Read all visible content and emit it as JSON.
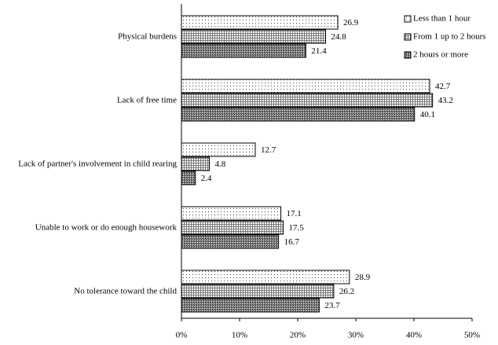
{
  "chart_data": {
    "type": "bar",
    "orientation": "horizontal",
    "categories": [
      "Physical burdens",
      "Lack of free time",
      "Lack of partner's involvement in child rearing",
      "Unable to work or do enough housework",
      "No tolerance toward the child"
    ],
    "series": [
      {
        "name": "Less than 1 hour",
        "values": [
          26.9,
          42.7,
          12.7,
          17.1,
          28.9
        ]
      },
      {
        "name": "From 1 up to 2 hours",
        "values": [
          24.8,
          43.2,
          4.8,
          17.5,
          26.2
        ]
      },
      {
        "name": "2 hours or more",
        "values": [
          21.4,
          40.1,
          2.4,
          16.7,
          23.7
        ]
      }
    ],
    "xlim": [
      0,
      50
    ],
    "xticks": [
      {
        "value": 0,
        "label": "0%"
      },
      {
        "value": 10,
        "label": "10%"
      },
      {
        "value": 20,
        "label": "20%"
      },
      {
        "value": 30,
        "label": "30%"
      },
      {
        "value": 40,
        "label": "40%"
      },
      {
        "value": 50,
        "label": "50%"
      }
    ],
    "legend": "upper right"
  }
}
